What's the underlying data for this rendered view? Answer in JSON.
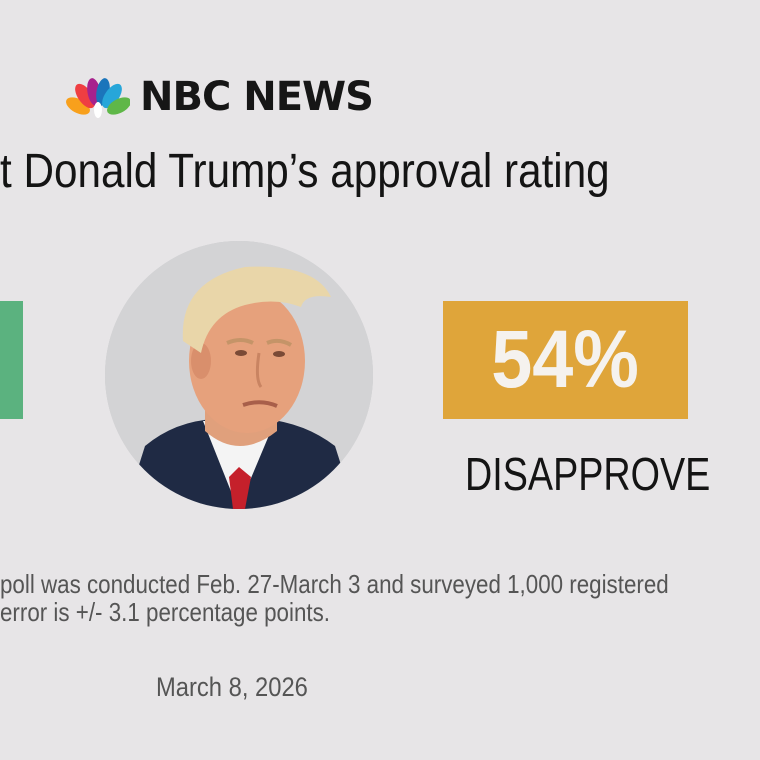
{
  "brand": {
    "name": "NBC NEWS",
    "logo": "peacock-logo"
  },
  "headline": "t Donald Trump’s approval rating",
  "approve": {
    "color": "#5bb27f"
  },
  "disapprove": {
    "value": "54%",
    "label": "DISAPPROVE",
    "color": "#dfa53a"
  },
  "portrait": {
    "subject": "portrait-photo"
  },
  "footnote": {
    "line1": "poll was conducted Feb. 27-March 3 and surveyed 1,000 registered",
    "line2": "error is +/- 3.1 percentage points."
  },
  "date": "March 8, 2026"
}
